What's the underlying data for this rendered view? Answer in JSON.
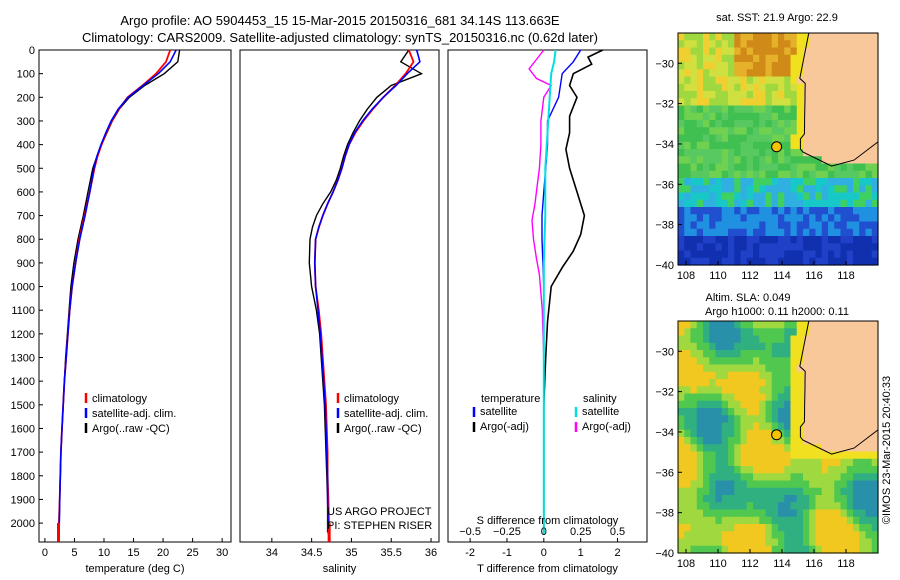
{
  "title_line1": "Argo profile: AO 5904453_15 15-Mar-2015 20150316_681 34.14S 113.663E",
  "title_line2": "Climatology: CARS2009. Satellite-adjusted climatology: synTS_20150316.nc (0.62d later)",
  "colors": {
    "clim": "#ff0000",
    "sat": "#0000ff",
    "argo": "#000000",
    "sal_sat": "#00e0e0",
    "sal_argo": "#ff00ff"
  },
  "chart_data": [
    {
      "type": "line",
      "name": "temperature-profile",
      "xlabel": "temperature (deg C)",
      "ylabel": "",
      "xlim": [
        -1,
        31.5
      ],
      "ylim": [
        2080,
        0
      ],
      "xticks": [
        0,
        5,
        10,
        15,
        20,
        25,
        30
      ],
      "yticks": [
        0,
        100,
        200,
        300,
        400,
        500,
        600,
        700,
        800,
        900,
        1000,
        1100,
        1200,
        1300,
        1400,
        1500,
        1600,
        1700,
        1800,
        1900,
        2000
      ],
      "legend": [
        "climatology",
        "satellite-adj. clim.",
        "Argo(..raw -QC)"
      ],
      "legend_loc": "center",
      "series": [
        {
          "name": "climatology",
          "x": [
            21.2,
            20.5,
            18.8,
            16.5,
            14.0,
            12.5,
            11.3,
            10.4,
            9.6,
            8.9,
            8.4,
            7.6,
            6.7,
            5.8,
            5.2,
            4.6,
            4.2,
            3.9,
            3.6,
            3.3,
            3.1,
            2.9,
            2.7,
            2.6,
            2.5,
            2.3
          ],
          "y": [
            0,
            50,
            100,
            150,
            200,
            250,
            300,
            350,
            400,
            450,
            500,
            600,
            700,
            800,
            900,
            1000,
            1100,
            1200,
            1300,
            1400,
            1500,
            1600,
            1700,
            1800,
            1900,
            2050
          ]
        },
        {
          "name": "satellite-adj. clim.",
          "x": [
            22.2,
            21.2,
            19.2,
            16.6,
            14.1,
            12.4,
            11.2,
            10.3,
            9.5,
            8.8,
            8.3,
            7.6,
            6.8,
            5.9,
            5.2,
            4.6,
            4.2,
            3.9,
            3.6,
            3.3,
            3.1,
            2.9,
            2.7,
            2.6,
            2.5,
            2.4
          ],
          "y": [
            0,
            50,
            100,
            150,
            200,
            250,
            300,
            350,
            400,
            450,
            500,
            600,
            700,
            800,
            900,
            1000,
            1100,
            1200,
            1300,
            1400,
            1500,
            1600,
            1700,
            1800,
            1900,
            2050
          ]
        },
        {
          "name": "Argo(..raw -QC)",
          "x": [
            22.8,
            22.5,
            20.2,
            16.9,
            14.3,
            12.6,
            11.4,
            10.5,
            9.6,
            8.8,
            8.1,
            7.3,
            6.5,
            5.6,
            4.9,
            4.4,
            4.1,
            3.8,
            3.5,
            3.3,
            3.1,
            2.9,
            2.7,
            2.6,
            2.5,
            2.4
          ],
          "y": [
            0,
            50,
            100,
            150,
            200,
            250,
            300,
            350,
            400,
            450,
            500,
            600,
            700,
            800,
            900,
            1000,
            1100,
            1200,
            1300,
            1400,
            1500,
            1600,
            1700,
            1800,
            1900,
            2040
          ]
        }
      ]
    },
    {
      "type": "line",
      "name": "salinity-profile",
      "xlabel": "salinity",
      "xlim": [
        33.6,
        36.1
      ],
      "ylim": [
        2080,
        0
      ],
      "xticks": [
        34,
        34.5,
        35,
        35.5,
        36
      ],
      "xtick_labels": [
        "34",
        "34.5",
        "35",
        "35.5",
        "36"
      ],
      "legend": [
        "climatology",
        "satellite-adj. clim.",
        "Argo(..raw -QC)"
      ],
      "annotations": [
        "US ARGO PROJECT",
        "PI: STEPHEN RISER"
      ],
      "series": [
        {
          "name": "climatology",
          "x": [
            35.72,
            35.78,
            35.68,
            35.55,
            35.4,
            35.27,
            35.15,
            35.05,
            34.97,
            34.92,
            34.88,
            34.83,
            34.77,
            34.7,
            34.64,
            34.59,
            34.55,
            34.54,
            34.55,
            34.59,
            34.62,
            34.64,
            34.66,
            34.68,
            34.69,
            34.7,
            34.7,
            34.71,
            34.72
          ],
          "y": [
            0,
            50,
            100,
            150,
            200,
            250,
            300,
            350,
            400,
            450,
            500,
            550,
            600,
            650,
            700,
            750,
            800,
            900,
            1000,
            1100,
            1200,
            1300,
            1400,
            1500,
            1600,
            1700,
            1800,
            1900,
            2050
          ]
        },
        {
          "name": "satellite-adj. clim.",
          "x": [
            35.82,
            35.86,
            35.7,
            35.56,
            35.4,
            35.26,
            35.14,
            35.04,
            34.97,
            34.92,
            34.88,
            34.83,
            34.77,
            34.7,
            34.64,
            34.59,
            34.55,
            34.54,
            34.55,
            34.58,
            34.61,
            34.63,
            34.65,
            34.67,
            34.68,
            34.69,
            34.7,
            34.7,
            34.71
          ],
          "y": [
            0,
            50,
            100,
            150,
            200,
            250,
            300,
            350,
            400,
            450,
            500,
            550,
            600,
            650,
            700,
            750,
            800,
            900,
            1000,
            1100,
            1200,
            1300,
            1400,
            1500,
            1600,
            1700,
            1800,
            1900,
            2050
          ]
        },
        {
          "name": "Argo(..raw -QC)",
          "x": [
            35.72,
            35.62,
            35.88,
            35.5,
            35.32,
            35.2,
            35.1,
            35.02,
            34.95,
            34.9,
            34.86,
            34.81,
            34.74,
            34.64,
            34.56,
            34.51,
            34.48,
            34.47,
            34.5,
            34.56,
            34.6,
            34.62,
            34.64,
            34.66,
            34.67,
            34.68,
            34.69,
            34.7,
            34.7
          ],
          "y": [
            0,
            50,
            100,
            150,
            200,
            250,
            300,
            350,
            400,
            450,
            500,
            550,
            600,
            650,
            700,
            750,
            800,
            900,
            1000,
            1100,
            1200,
            1300,
            1400,
            1500,
            1600,
            1700,
            1800,
            1900,
            2040
          ]
        }
      ]
    },
    {
      "type": "line",
      "name": "difference-profile",
      "xlabel": "T difference from climatology",
      "xlabel_top": "S difference from climatology",
      "xlim": [
        -2.6,
        2.8
      ],
      "ylim": [
        2080,
        0
      ],
      "xticks": [
        -2,
        -1,
        0,
        1,
        2
      ],
      "sticks": [
        -0.5,
        -0.25,
        0,
        0.25,
        0.5
      ],
      "stick_labels": [
        "−0.5",
        "−0.25",
        "0",
        "0.25",
        "0.5"
      ],
      "legend_temp": [
        "temperature",
        "satellite",
        "Argo(-adj)"
      ],
      "legend_sal": [
        "salinity",
        "satellite",
        "Argo(-adj)"
      ],
      "series": [
        {
          "name": "T satellite",
          "x": [
            1.0,
            0.8,
            0.5,
            0.4,
            0.1,
            0.1,
            0.05,
            0.0,
            -0.05,
            -0.05,
            0.0,
            0.0,
            0.0,
            0.0,
            0.0
          ],
          "y": [
            0,
            50,
            100,
            200,
            300,
            400,
            500,
            600,
            700,
            800,
            1000,
            1200,
            1500,
            1800,
            2050
          ]
        },
        {
          "name": "T Argo(-adj)",
          "x": [
            1.6,
            1.2,
            1.3,
            0.8,
            0.7,
            0.9,
            0.7,
            0.7,
            0.6,
            0.7,
            0.8,
            0.9,
            1.0,
            1.1,
            1.0,
            0.8,
            0.5,
            0.2,
            0.1,
            0.05,
            0.0,
            0.0,
            0.0,
            0.0
          ],
          "y": [
            0,
            30,
            60,
            100,
            150,
            200,
            280,
            350,
            420,
            500,
            550,
            600,
            650,
            700,
            780,
            850,
            920,
            1000,
            1150,
            1300,
            1500,
            1700,
            1900,
            2040
          ]
        },
        {
          "name": "S satellite",
          "x": [
            0.08,
            0.07,
            0.05,
            0.04,
            0.03,
            0.02,
            0.01,
            0.01,
            0.0,
            0.0,
            0.0,
            0.0,
            0.0
          ],
          "y": [
            0,
            50,
            100,
            200,
            300,
            400,
            500,
            700,
            900,
            1200,
            1500,
            1800,
            2050
          ]
        },
        {
          "name": "S Argo(-adj)",
          "x": [
            0.0,
            -0.05,
            -0.1,
            -0.05,
            0.05,
            0.0,
            -0.02,
            -0.02,
            -0.03,
            -0.04,
            -0.05,
            -0.06,
            -0.08,
            -0.07,
            -0.05,
            -0.03,
            -0.01,
            0.0,
            0.0,
            0.0
          ],
          "y": [
            0,
            40,
            80,
            120,
            150,
            200,
            300,
            400,
            500,
            550,
            600,
            650,
            720,
            800,
            880,
            950,
            1100,
            1300,
            1600,
            2040
          ]
        }
      ]
    },
    {
      "type": "heatmap",
      "name": "sst-map",
      "title": "sat. SST: 21.9 Argo: 22.9",
      "xlim": [
        107.5,
        120
      ],
      "ylim": [
        -40,
        -28.5
      ],
      "xticks": [
        108,
        110,
        112,
        114,
        116,
        118
      ],
      "yticks": [
        -30,
        -32,
        -34,
        -36,
        -38,
        -40
      ],
      "argo_position": [
        113.663,
        -34.14
      ]
    },
    {
      "type": "heatmap",
      "name": "sla-map",
      "title": "Altim. SLA: 0.049",
      "subtitle": "Argo h1000: 0.11 h2000: 0.11",
      "xlim": [
        107.5,
        120
      ],
      "ylim": [
        -40,
        -28.5
      ],
      "xticks": [
        108,
        110,
        112,
        114,
        116,
        118
      ],
      "yticks": [
        -30,
        -32,
        -34,
        -36,
        -38,
        -40
      ],
      "argo_position": [
        113.663,
        -34.14
      ]
    }
  ],
  "side_text": "©IMOS 23-Mar-2015 20:40:33"
}
